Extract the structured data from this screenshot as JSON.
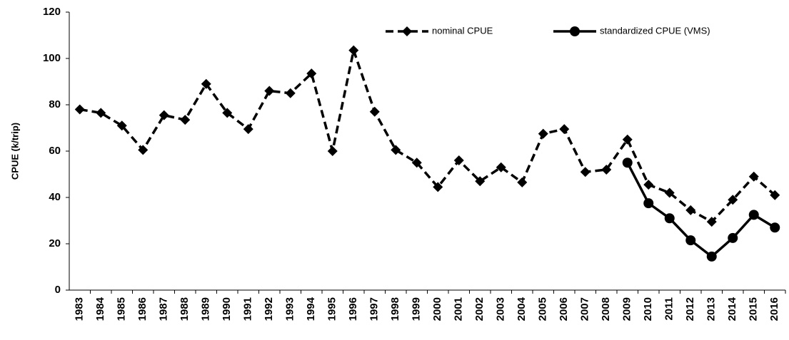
{
  "chart_data": {
    "type": "line",
    "y_label": "CPUE (k/trip)",
    "categories": [
      "1983",
      "1984",
      "1985",
      "1986",
      "1987",
      "1988",
      "1989",
      "1990",
      "1991",
      "1992",
      "1993",
      "1994",
      "1995",
      "1996",
      "1997",
      "1998",
      "1999",
      "2000",
      "2001",
      "2002",
      "2003",
      "2004",
      "2005",
      "2006",
      "2007",
      "2008",
      "2009",
      "2010",
      "2011",
      "2012",
      "2013",
      "2014",
      "2015",
      "2016"
    ],
    "series": [
      {
        "name": "nominal CPUE",
        "color": "#000000",
        "line_style": "dashed",
        "marker": "diamond",
        "values": [
          78,
          76.5,
          71,
          60.5,
          75.5,
          73.5,
          89,
          76.5,
          69.5,
          86,
          85,
          93.5,
          60,
          103.5,
          77,
          60.5,
          55,
          44.5,
          56,
          47,
          53,
          46.5,
          67.5,
          69.5,
          51,
          52,
          65,
          45.5,
          42,
          34.5,
          29.5,
          39,
          49,
          41
        ]
      },
      {
        "name": "standardized CPUE (VMS)",
        "color": "#000000",
        "line_style": "solid",
        "marker": "circle",
        "values": [
          null,
          null,
          null,
          null,
          null,
          null,
          null,
          null,
          null,
          null,
          null,
          null,
          null,
          null,
          null,
          null,
          null,
          null,
          null,
          null,
          null,
          null,
          null,
          null,
          null,
          null,
          55,
          37.5,
          31,
          21.5,
          14.5,
          22.5,
          32.5,
          27
        ]
      }
    ],
    "ylim": [
      0,
      120
    ],
    "yticks": [
      0,
      20,
      40,
      60,
      80,
      100,
      120
    ],
    "grid": false,
    "legend": "top"
  }
}
